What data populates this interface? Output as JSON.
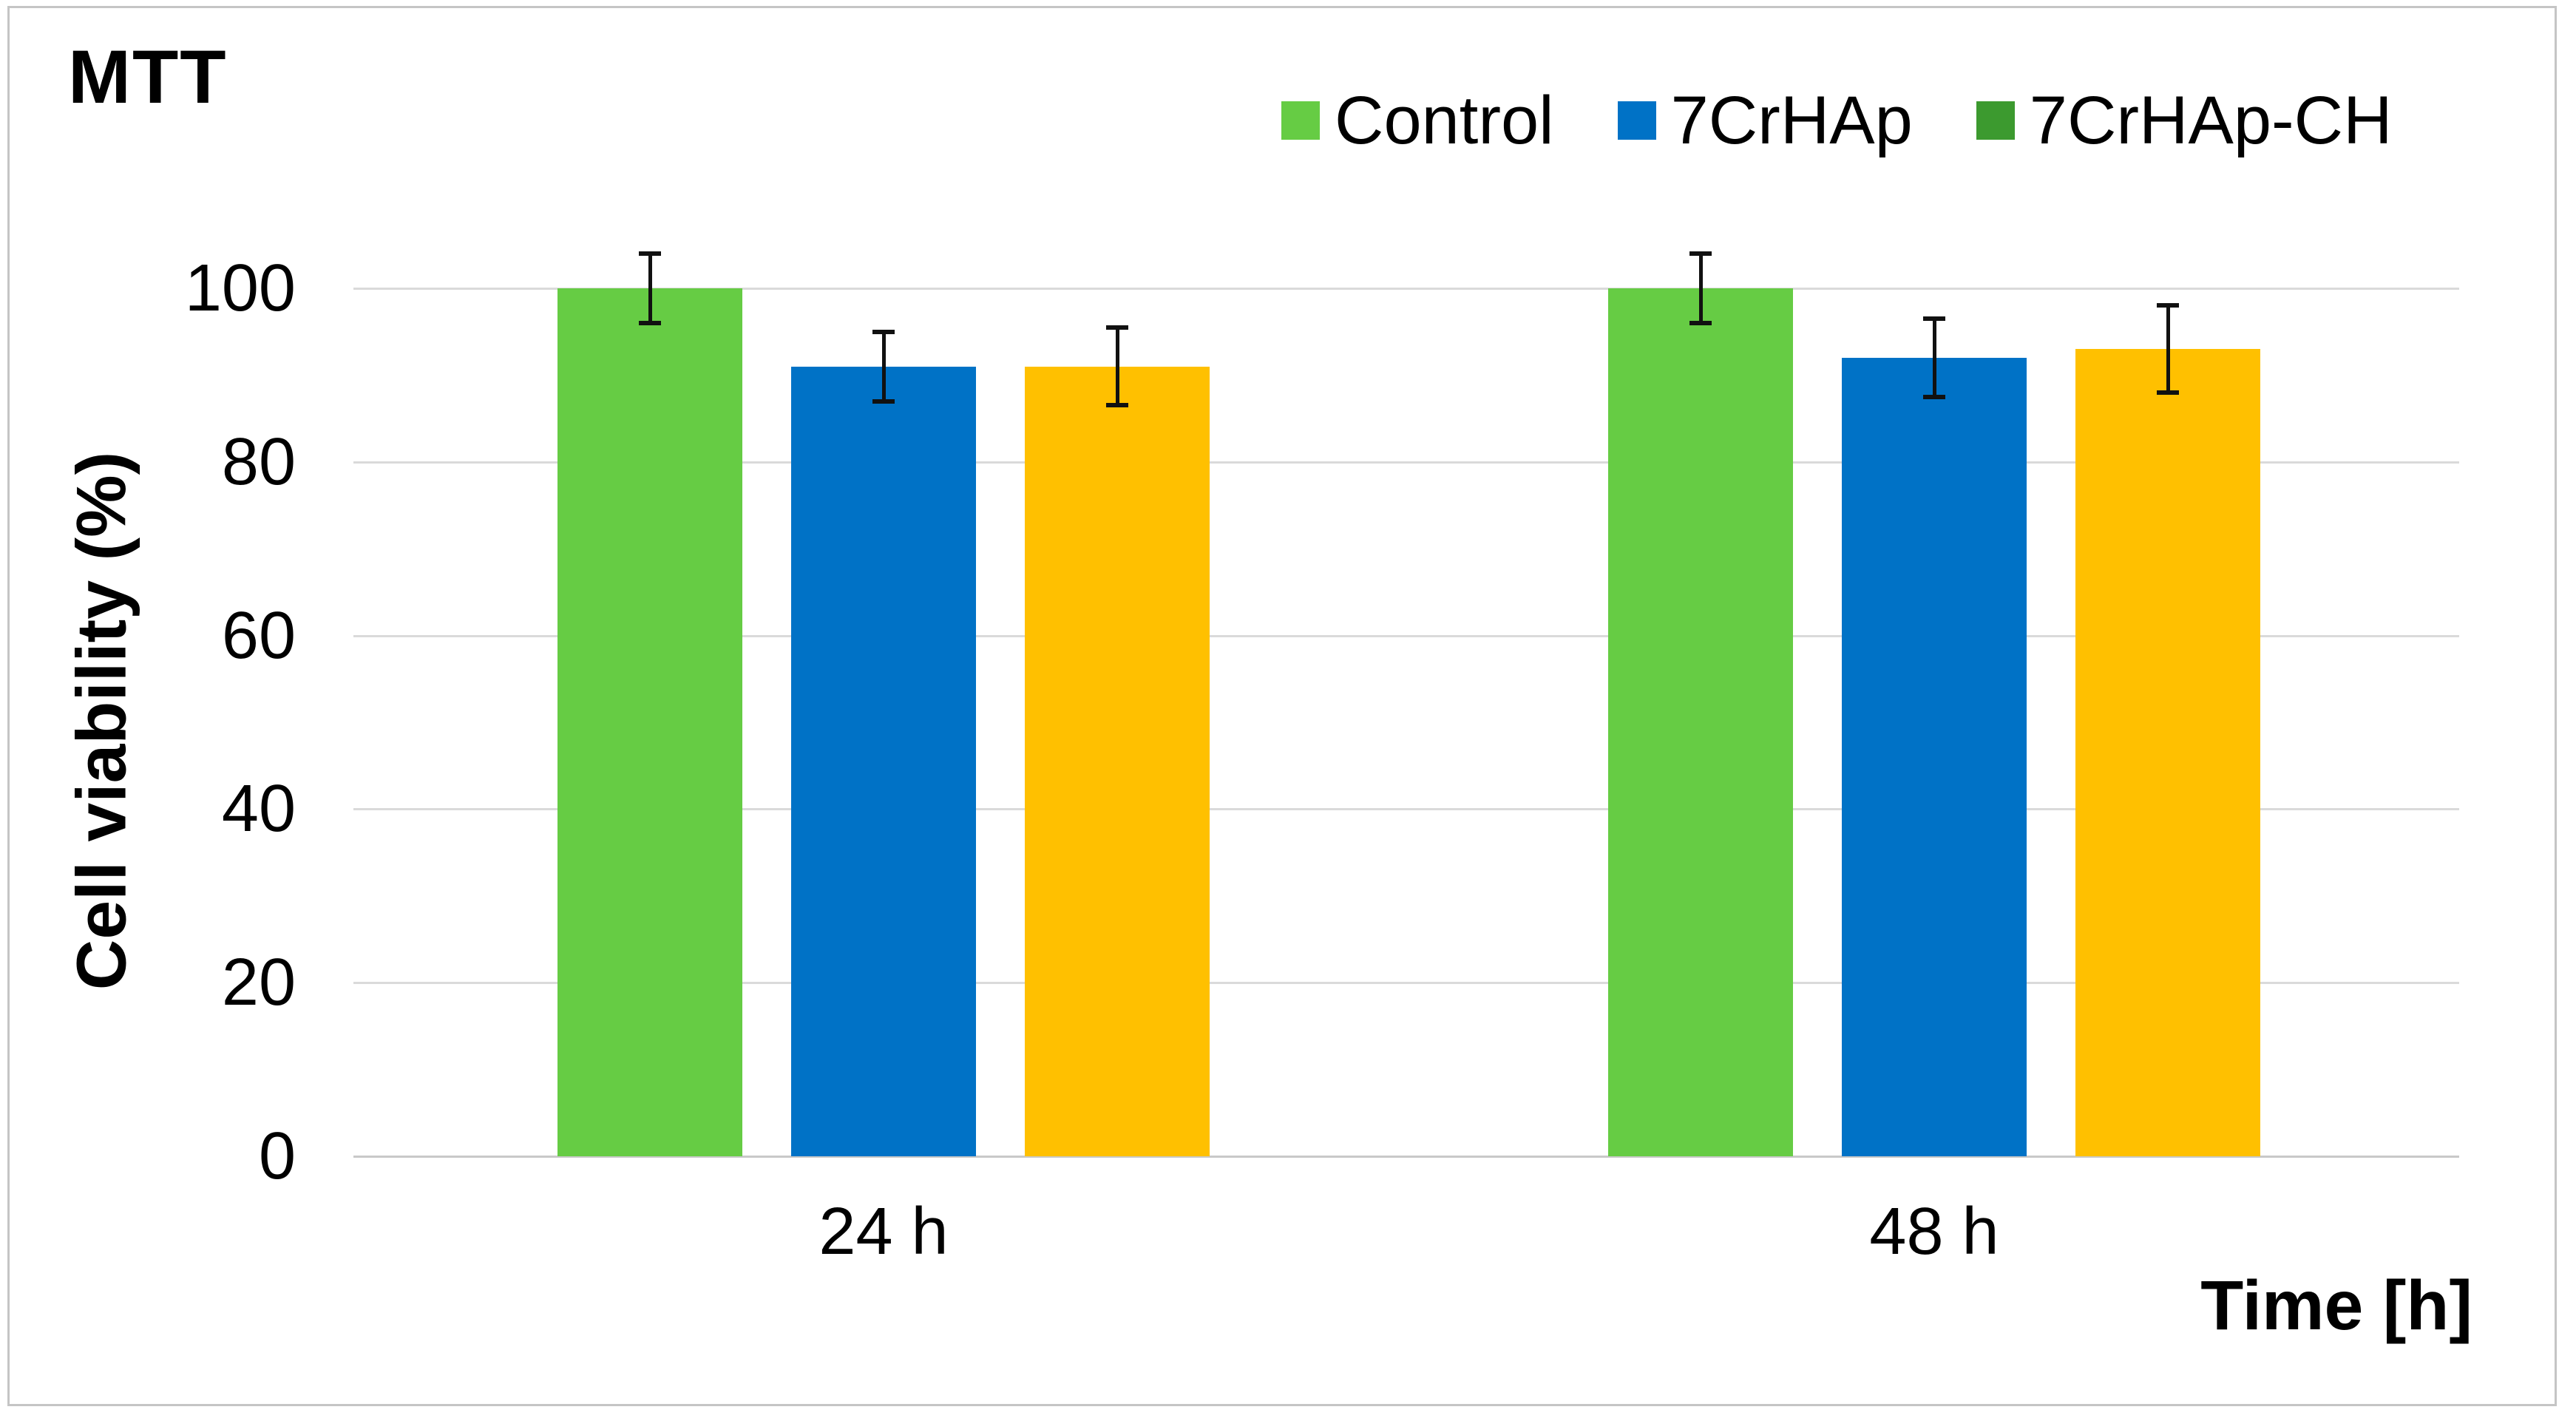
{
  "page": {
    "title": "MTT"
  },
  "legend": {
    "items": [
      {
        "label": "Control",
        "color": "#66cc44"
      },
      {
        "label": "7CrHAp",
        "color": "#0072c6"
      },
      {
        "label": "7CrHAp-CH",
        "color": "#3c9a2f"
      }
    ]
  },
  "y_axis": {
    "title": "Cell viability (%)",
    "ticks": [
      100,
      80,
      60,
      40,
      20,
      0
    ]
  },
  "x_axis": {
    "title": "Time [h]",
    "categories": [
      "24 h",
      "48 h"
    ]
  },
  "chart_data": {
    "type": "bar",
    "title": "MTT",
    "xlabel": "Time [h]",
    "ylabel": "Cell viability (%)",
    "ylim": [
      0,
      100
    ],
    "ytick_interval": 20,
    "grid": true,
    "legend_position": "top-right",
    "error_bars": true,
    "categories": [
      "24 h",
      "48 h"
    ],
    "series": [
      {
        "name": "Control",
        "values": [
          100,
          100
        ],
        "errors": [
          4,
          4
        ],
        "bar_color": "#66cc44",
        "legend_color": "#66cc44"
      },
      {
        "name": "7CrHAp",
        "values": [
          91,
          92
        ],
        "errors": [
          4,
          4.5
        ],
        "bar_color": "#0072c6",
        "legend_color": "#0072c6"
      },
      {
        "name": "7CrHAp-CH",
        "values": [
          91,
          93
        ],
        "errors": [
          4.5,
          5
        ],
        "bar_color": "#ffc000",
        "legend_color": "#3c9a2f"
      }
    ]
  },
  "colors": {
    "gridline": "#dadada",
    "baseline": "#c9c9c9",
    "frame_border": "#c5c5c5",
    "error_bar": "#111111",
    "text": "#000000",
    "background": "#ffffff"
  }
}
